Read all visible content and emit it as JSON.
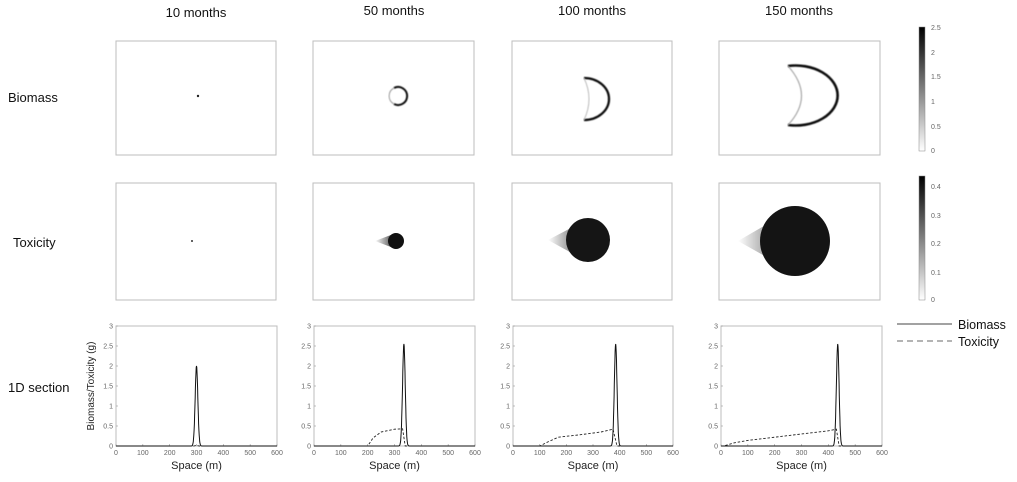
{
  "columns": [
    "10 months",
    "50 months",
    "100 months",
    "150 months"
  ],
  "rows": {
    "biomass": "Biomass",
    "toxicity": "Toxicity",
    "section": "1D section"
  },
  "colorbars": {
    "biomass": {
      "ticks": [
        "2.5",
        "2",
        "1.5",
        "1",
        "0.5",
        "0"
      ]
    },
    "toxicity": {
      "ticks": [
        "0.4",
        "0.3",
        "0.2",
        "0.1",
        "0"
      ]
    }
  },
  "section": {
    "xlabel": "Space (m)",
    "ylabel": "Biomass/Toxicity (g)",
    "xticks": [
      "0",
      "100",
      "200",
      "300",
      "400",
      "500",
      "600"
    ],
    "yticks": [
      "0",
      "0.5",
      "1",
      "1.5",
      "2",
      "2.5",
      "3"
    ]
  },
  "legend": {
    "biomass": "Biomass",
    "toxicity": "Toxicity"
  },
  "chart_data": [
    {
      "type": "line",
      "title": "10 months",
      "xlabel": "Space (m)",
      "ylabel": "Biomass/Toxicity (g)",
      "xlim": [
        0,
        600
      ],
      "ylim": [
        0,
        3
      ],
      "series": [
        {
          "name": "Biomass",
          "peak_x": 300,
          "peak_y": 2.0
        },
        {
          "name": "Toxicity",
          "x": [
            0,
            290,
            300,
            310,
            600
          ],
          "y": [
            0,
            0,
            0.02,
            0,
            0
          ]
        }
      ]
    },
    {
      "type": "line",
      "title": "50 months",
      "xlabel": "Space (m)",
      "ylabel": "Biomass/Toxicity (g)",
      "xlim": [
        0,
        600
      ],
      "ylim": [
        0,
        3
      ],
      "series": [
        {
          "name": "Biomass",
          "peak_x": 335,
          "peak_y": 2.55
        },
        {
          "name": "Toxicity",
          "x": [
            0,
            200,
            220,
            250,
            300,
            330,
            340,
            600
          ],
          "y": [
            0,
            0,
            0.2,
            0.35,
            0.42,
            0.43,
            0,
            0
          ]
        }
      ]
    },
    {
      "type": "line",
      "title": "100 months",
      "xlabel": "Space (m)",
      "ylabel": "Biomass/Toxicity (g)",
      "xlim": [
        0,
        600
      ],
      "ylim": [
        0,
        3
      ],
      "series": [
        {
          "name": "Biomass",
          "peak_x": 385,
          "peak_y": 2.55
        },
        {
          "name": "Toxicity",
          "x": [
            0,
            100,
            130,
            170,
            250,
            330,
            375,
            390,
            600
          ],
          "y": [
            0,
            0,
            0.1,
            0.22,
            0.28,
            0.35,
            0.42,
            0,
            0
          ]
        }
      ]
    },
    {
      "type": "line",
      "title": "150 months",
      "xlabel": "Space (m)",
      "ylabel": "Biomass/Toxicity (g)",
      "xlim": [
        0,
        600
      ],
      "ylim": [
        0,
        3
      ],
      "series": [
        {
          "name": "Biomass",
          "peak_x": 435,
          "peak_y": 2.55
        },
        {
          "name": "Toxicity",
          "x": [
            0,
            10,
            50,
            100,
            200,
            300,
            400,
            430,
            440,
            600
          ],
          "y": [
            0,
            0,
            0.08,
            0.14,
            0.22,
            0.3,
            0.38,
            0.42,
            0,
            0
          ]
        }
      ]
    }
  ]
}
